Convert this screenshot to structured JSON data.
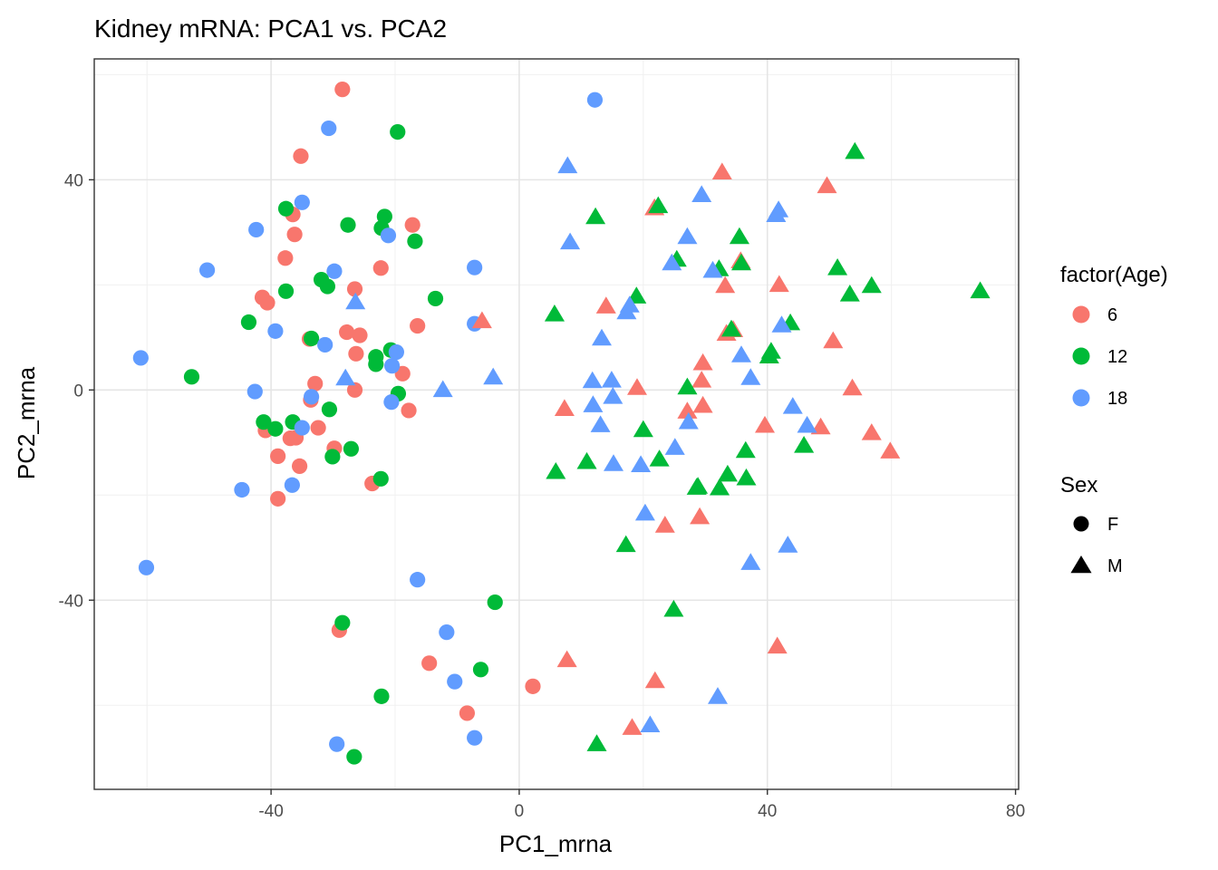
{
  "chart_data": {
    "type": "scatter",
    "title": "Kidney mRNA: PCA1 vs. PCA2",
    "xlabel": "PC1_mrna",
    "ylabel": "PC2_mrna",
    "xlim": [
      -68.5,
      80.5
    ],
    "ylim": [
      -76,
      63
    ],
    "x_ticks": [
      -40,
      0,
      40,
      80
    ],
    "x_tick_labels": [
      "-40",
      "0",
      "40",
      "80"
    ],
    "y_ticks": [
      -40,
      0,
      40
    ],
    "y_tick_labels": [
      "-40",
      "0",
      "40"
    ],
    "x_minor": [
      -60,
      -20,
      20,
      60
    ],
    "y_minor": [
      -60,
      -20,
      20,
      60
    ],
    "grid": true,
    "legend_position": "right",
    "color_legend": {
      "title": "factor(Age)",
      "entries": [
        {
          "label": "6",
          "color": "#F8766D"
        },
        {
          "label": "12",
          "color": "#00BA38"
        },
        {
          "label": "18",
          "color": "#619CFF"
        }
      ]
    },
    "shape_legend": {
      "title": "Sex",
      "entries": [
        {
          "label": "F",
          "shape": "circle"
        },
        {
          "label": "M",
          "shape": "triangle"
        }
      ]
    },
    "points": [
      {
        "x": -28.5,
        "y": 57.2,
        "age": "6",
        "sex": "F"
      },
      {
        "x": -35.2,
        "y": 44.5,
        "age": "6",
        "sex": "F"
      },
      {
        "x": -36.5,
        "y": 33.4,
        "age": "6",
        "sex": "F"
      },
      {
        "x": -36.2,
        "y": 29.6,
        "age": "6",
        "sex": "F"
      },
      {
        "x": -37.7,
        "y": 25.1,
        "age": "6",
        "sex": "F"
      },
      {
        "x": -41.4,
        "y": 17.6,
        "age": "6",
        "sex": "F"
      },
      {
        "x": -40.6,
        "y": 16.6,
        "age": "6",
        "sex": "F"
      },
      {
        "x": -22.3,
        "y": 23.2,
        "age": "6",
        "sex": "F"
      },
      {
        "x": -17.2,
        "y": 31.4,
        "age": "6",
        "sex": "F"
      },
      {
        "x": -26.5,
        "y": 19.2,
        "age": "6",
        "sex": "F"
      },
      {
        "x": -16.4,
        "y": 12.2,
        "age": "6",
        "sex": "F"
      },
      {
        "x": -27.8,
        "y": 11.0,
        "age": "6",
        "sex": "F"
      },
      {
        "x": -25.7,
        "y": 10.4,
        "age": "6",
        "sex": "F"
      },
      {
        "x": -33.8,
        "y": 9.7,
        "age": "6",
        "sex": "F"
      },
      {
        "x": -26.3,
        "y": 6.9,
        "age": "6",
        "sex": "F"
      },
      {
        "x": -18.8,
        "y": 3.1,
        "age": "6",
        "sex": "F"
      },
      {
        "x": -32.9,
        "y": 1.2,
        "age": "6",
        "sex": "F"
      },
      {
        "x": -26.5,
        "y": 0.0,
        "age": "6",
        "sex": "F"
      },
      {
        "x": -33.6,
        "y": -1.9,
        "age": "6",
        "sex": "F"
      },
      {
        "x": -17.8,
        "y": -3.9,
        "age": "6",
        "sex": "F"
      },
      {
        "x": -32.4,
        "y": -7.2,
        "age": "6",
        "sex": "F"
      },
      {
        "x": -40.9,
        "y": -7.7,
        "age": "6",
        "sex": "F"
      },
      {
        "x": -36.9,
        "y": -9.2,
        "age": "6",
        "sex": "F"
      },
      {
        "x": -36.0,
        "y": -9.1,
        "age": "6",
        "sex": "F"
      },
      {
        "x": -29.8,
        "y": -11.1,
        "age": "6",
        "sex": "F"
      },
      {
        "x": -38.9,
        "y": -12.6,
        "age": "6",
        "sex": "F"
      },
      {
        "x": -35.4,
        "y": -14.5,
        "age": "6",
        "sex": "F"
      },
      {
        "x": -23.7,
        "y": -17.8,
        "age": "6",
        "sex": "F"
      },
      {
        "x": -38.9,
        "y": -20.7,
        "age": "6",
        "sex": "F"
      },
      {
        "x": -29.0,
        "y": -45.7,
        "age": "6",
        "sex": "F"
      },
      {
        "x": -14.5,
        "y": -52.0,
        "age": "6",
        "sex": "F"
      },
      {
        "x": -8.4,
        "y": -61.5,
        "age": "6",
        "sex": "F"
      },
      {
        "x": 2.2,
        "y": -56.4,
        "age": "6",
        "sex": "F"
      },
      {
        "x": -19.6,
        "y": 49.1,
        "age": "12",
        "sex": "F"
      },
      {
        "x": -37.6,
        "y": 34.5,
        "age": "12",
        "sex": "F"
      },
      {
        "x": -27.6,
        "y": 31.4,
        "age": "12",
        "sex": "F"
      },
      {
        "x": -21.7,
        "y": 33.0,
        "age": "12",
        "sex": "F"
      },
      {
        "x": -22.2,
        "y": 30.8,
        "age": "12",
        "sex": "F"
      },
      {
        "x": -16.8,
        "y": 28.3,
        "age": "12",
        "sex": "F"
      },
      {
        "x": -31.9,
        "y": 21.0,
        "age": "12",
        "sex": "F"
      },
      {
        "x": -30.9,
        "y": 19.7,
        "age": "12",
        "sex": "F"
      },
      {
        "x": -37.6,
        "y": 18.8,
        "age": "12",
        "sex": "F"
      },
      {
        "x": -13.5,
        "y": 17.4,
        "age": "12",
        "sex": "F"
      },
      {
        "x": -43.6,
        "y": 12.9,
        "age": "12",
        "sex": "F"
      },
      {
        "x": -33.5,
        "y": 9.8,
        "age": "12",
        "sex": "F"
      },
      {
        "x": -20.7,
        "y": 7.6,
        "age": "12",
        "sex": "F"
      },
      {
        "x": -23.1,
        "y": 6.3,
        "age": "12",
        "sex": "F"
      },
      {
        "x": -23.1,
        "y": 4.9,
        "age": "12",
        "sex": "F"
      },
      {
        "x": -52.8,
        "y": 2.5,
        "age": "12",
        "sex": "F"
      },
      {
        "x": -19.5,
        "y": -0.7,
        "age": "12",
        "sex": "F"
      },
      {
        "x": -30.6,
        "y": -3.7,
        "age": "12",
        "sex": "F"
      },
      {
        "x": -41.2,
        "y": -6.1,
        "age": "12",
        "sex": "F"
      },
      {
        "x": -36.5,
        "y": -6.1,
        "age": "12",
        "sex": "F"
      },
      {
        "x": -39.3,
        "y": -7.4,
        "age": "12",
        "sex": "F"
      },
      {
        "x": -27.1,
        "y": -11.2,
        "age": "12",
        "sex": "F"
      },
      {
        "x": -30.1,
        "y": -12.7,
        "age": "12",
        "sex": "F"
      },
      {
        "x": -22.3,
        "y": -16.9,
        "age": "12",
        "sex": "F"
      },
      {
        "x": -28.5,
        "y": -44.3,
        "age": "12",
        "sex": "F"
      },
      {
        "x": -3.9,
        "y": -40.4,
        "age": "12",
        "sex": "F"
      },
      {
        "x": -6.2,
        "y": -53.2,
        "age": "12",
        "sex": "F"
      },
      {
        "x": -22.2,
        "y": -58.3,
        "age": "12",
        "sex": "F"
      },
      {
        "x": -26.6,
        "y": -69.8,
        "age": "12",
        "sex": "F"
      },
      {
        "x": 12.2,
        "y": 55.2,
        "age": "18",
        "sex": "F"
      },
      {
        "x": -30.7,
        "y": 49.8,
        "age": "18",
        "sex": "F"
      },
      {
        "x": -35.0,
        "y": 35.7,
        "age": "18",
        "sex": "F"
      },
      {
        "x": -42.4,
        "y": 30.5,
        "age": "18",
        "sex": "F"
      },
      {
        "x": -21.1,
        "y": 29.4,
        "age": "18",
        "sex": "F"
      },
      {
        "x": -50.3,
        "y": 22.8,
        "age": "18",
        "sex": "F"
      },
      {
        "x": -29.8,
        "y": 22.6,
        "age": "18",
        "sex": "F"
      },
      {
        "x": -7.2,
        "y": 23.3,
        "age": "18",
        "sex": "F"
      },
      {
        "x": -39.3,
        "y": 11.2,
        "age": "18",
        "sex": "F"
      },
      {
        "x": -31.3,
        "y": 8.6,
        "age": "18",
        "sex": "F"
      },
      {
        "x": -7.2,
        "y": 12.6,
        "age": "18",
        "sex": "F"
      },
      {
        "x": -19.8,
        "y": 7.2,
        "age": "18",
        "sex": "F"
      },
      {
        "x": -20.5,
        "y": 4.6,
        "age": "18",
        "sex": "F"
      },
      {
        "x": -61.0,
        "y": 6.1,
        "age": "18",
        "sex": "F"
      },
      {
        "x": -42.6,
        "y": -0.3,
        "age": "18",
        "sex": "F"
      },
      {
        "x": -33.5,
        "y": -1.3,
        "age": "18",
        "sex": "F"
      },
      {
        "x": -20.6,
        "y": -2.3,
        "age": "18",
        "sex": "F"
      },
      {
        "x": -35.0,
        "y": -7.2,
        "age": "18",
        "sex": "F"
      },
      {
        "x": -44.7,
        "y": -19.0,
        "age": "18",
        "sex": "F"
      },
      {
        "x": -36.6,
        "y": -18.1,
        "age": "18",
        "sex": "F"
      },
      {
        "x": -60.1,
        "y": -33.8,
        "age": "18",
        "sex": "F"
      },
      {
        "x": -16.4,
        "y": -36.1,
        "age": "18",
        "sex": "F"
      },
      {
        "x": -11.7,
        "y": -46.1,
        "age": "18",
        "sex": "F"
      },
      {
        "x": -10.4,
        "y": -55.5,
        "age": "18",
        "sex": "F"
      },
      {
        "x": -29.4,
        "y": -67.4,
        "age": "18",
        "sex": "F"
      },
      {
        "x": -7.2,
        "y": -66.2,
        "age": "18",
        "sex": "F"
      },
      {
        "x": -6.0,
        "y": 13.1,
        "age": "6",
        "sex": "M"
      },
      {
        "x": 32.7,
        "y": 41.4,
        "age": "6",
        "sex": "M"
      },
      {
        "x": 49.6,
        "y": 38.8,
        "age": "6",
        "sex": "M"
      },
      {
        "x": 21.8,
        "y": 34.6,
        "age": "6",
        "sex": "M"
      },
      {
        "x": 35.7,
        "y": 24.5,
        "age": "6",
        "sex": "M"
      },
      {
        "x": 33.2,
        "y": 19.8,
        "age": "6",
        "sex": "M"
      },
      {
        "x": 41.9,
        "y": 20.0,
        "age": "6",
        "sex": "M"
      },
      {
        "x": 14.0,
        "y": 15.9,
        "age": "6",
        "sex": "M"
      },
      {
        "x": 33.4,
        "y": 10.7,
        "age": "6",
        "sex": "M"
      },
      {
        "x": 34.5,
        "y": 11.4,
        "age": "6",
        "sex": "M"
      },
      {
        "x": 50.6,
        "y": 9.3,
        "age": "6",
        "sex": "M"
      },
      {
        "x": 29.6,
        "y": 5.1,
        "age": "6",
        "sex": "M"
      },
      {
        "x": 29.4,
        "y": 1.8,
        "age": "6",
        "sex": "M"
      },
      {
        "x": 19.0,
        "y": 0.4,
        "age": "6",
        "sex": "M"
      },
      {
        "x": 53.7,
        "y": 0.3,
        "age": "6",
        "sex": "M"
      },
      {
        "x": 7.3,
        "y": -3.6,
        "age": "6",
        "sex": "M"
      },
      {
        "x": 27.1,
        "y": -4.1,
        "age": "6",
        "sex": "M"
      },
      {
        "x": 29.6,
        "y": -3.0,
        "age": "6",
        "sex": "M"
      },
      {
        "x": 39.6,
        "y": -6.8,
        "age": "6",
        "sex": "M"
      },
      {
        "x": 48.6,
        "y": -7.1,
        "age": "6",
        "sex": "M"
      },
      {
        "x": 56.8,
        "y": -8.2,
        "age": "6",
        "sex": "M"
      },
      {
        "x": 59.8,
        "y": -11.7,
        "age": "6",
        "sex": "M"
      },
      {
        "x": 29.1,
        "y": -24.2,
        "age": "6",
        "sex": "M"
      },
      {
        "x": 23.5,
        "y": -25.8,
        "age": "6",
        "sex": "M"
      },
      {
        "x": 7.7,
        "y": -51.4,
        "age": "6",
        "sex": "M"
      },
      {
        "x": 41.6,
        "y": -48.8,
        "age": "6",
        "sex": "M"
      },
      {
        "x": 21.9,
        "y": -55.4,
        "age": "6",
        "sex": "M"
      },
      {
        "x": 18.2,
        "y": -64.3,
        "age": "6",
        "sex": "M"
      },
      {
        "x": 54.1,
        "y": 45.3,
        "age": "12",
        "sex": "M"
      },
      {
        "x": 12.3,
        "y": 32.9,
        "age": "12",
        "sex": "M"
      },
      {
        "x": 22.4,
        "y": 35.0,
        "age": "12",
        "sex": "M"
      },
      {
        "x": 35.5,
        "y": 29.1,
        "age": "12",
        "sex": "M"
      },
      {
        "x": 25.4,
        "y": 24.8,
        "age": "12",
        "sex": "M"
      },
      {
        "x": 32.2,
        "y": 23.0,
        "age": "12",
        "sex": "M"
      },
      {
        "x": 35.8,
        "y": 24.1,
        "age": "12",
        "sex": "M"
      },
      {
        "x": 51.3,
        "y": 23.2,
        "age": "12",
        "sex": "M"
      },
      {
        "x": 53.3,
        "y": 18.2,
        "age": "12",
        "sex": "M"
      },
      {
        "x": 56.8,
        "y": 19.8,
        "age": "12",
        "sex": "M"
      },
      {
        "x": 74.3,
        "y": 18.8,
        "age": "12",
        "sex": "M"
      },
      {
        "x": 18.9,
        "y": 17.8,
        "age": "12",
        "sex": "M"
      },
      {
        "x": 5.7,
        "y": 14.4,
        "age": "12",
        "sex": "M"
      },
      {
        "x": 43.7,
        "y": 12.7,
        "age": "12",
        "sex": "M"
      },
      {
        "x": 34.2,
        "y": 11.5,
        "age": "12",
        "sex": "M"
      },
      {
        "x": 40.6,
        "y": 7.3,
        "age": "12",
        "sex": "M"
      },
      {
        "x": 40.3,
        "y": 6.4,
        "age": "12",
        "sex": "M"
      },
      {
        "x": 27.1,
        "y": 0.5,
        "age": "12",
        "sex": "M"
      },
      {
        "x": 20.0,
        "y": -7.6,
        "age": "12",
        "sex": "M"
      },
      {
        "x": 36.5,
        "y": -11.6,
        "age": "12",
        "sex": "M"
      },
      {
        "x": 45.9,
        "y": -10.6,
        "age": "12",
        "sex": "M"
      },
      {
        "x": 10.9,
        "y": -13.7,
        "age": "12",
        "sex": "M"
      },
      {
        "x": 22.6,
        "y": -13.2,
        "age": "12",
        "sex": "M"
      },
      {
        "x": 5.9,
        "y": -15.6,
        "age": "12",
        "sex": "M"
      },
      {
        "x": 33.6,
        "y": -16.1,
        "age": "12",
        "sex": "M"
      },
      {
        "x": 36.6,
        "y": -16.8,
        "age": "12",
        "sex": "M"
      },
      {
        "x": 28.8,
        "y": -18.4,
        "age": "12",
        "sex": "M"
      },
      {
        "x": 32.3,
        "y": -18.7,
        "age": "12",
        "sex": "M"
      },
      {
        "x": 28.6,
        "y": -18.6,
        "age": "12",
        "sex": "M"
      },
      {
        "x": 17.2,
        "y": -29.5,
        "age": "12",
        "sex": "M"
      },
      {
        "x": 24.9,
        "y": -41.8,
        "age": "12",
        "sex": "M"
      },
      {
        "x": 12.5,
        "y": -67.4,
        "age": "12",
        "sex": "M"
      },
      {
        "x": 7.8,
        "y": 42.6,
        "age": "18",
        "sex": "M"
      },
      {
        "x": 29.4,
        "y": 37.1,
        "age": "18",
        "sex": "M"
      },
      {
        "x": 41.8,
        "y": 34.2,
        "age": "18",
        "sex": "M"
      },
      {
        "x": 41.4,
        "y": 33.3,
        "age": "18",
        "sex": "M"
      },
      {
        "x": 27.1,
        "y": 29.1,
        "age": "18",
        "sex": "M"
      },
      {
        "x": 8.2,
        "y": 28.1,
        "age": "18",
        "sex": "M"
      },
      {
        "x": 24.6,
        "y": 24.1,
        "age": "18",
        "sex": "M"
      },
      {
        "x": 31.2,
        "y": 22.7,
        "age": "18",
        "sex": "M"
      },
      {
        "x": 17.8,
        "y": 16.1,
        "age": "18",
        "sex": "M"
      },
      {
        "x": 17.3,
        "y": 14.8,
        "age": "18",
        "sex": "M"
      },
      {
        "x": -26.4,
        "y": 16.7,
        "age": "18",
        "sex": "M"
      },
      {
        "x": 42.3,
        "y": 12.3,
        "age": "18",
        "sex": "M"
      },
      {
        "x": 13.3,
        "y": 9.8,
        "age": "18",
        "sex": "M"
      },
      {
        "x": 35.8,
        "y": 6.6,
        "age": "18",
        "sex": "M"
      },
      {
        "x": 11.8,
        "y": 1.7,
        "age": "18",
        "sex": "M"
      },
      {
        "x": 14.9,
        "y": 1.8,
        "age": "18",
        "sex": "M"
      },
      {
        "x": 37.3,
        "y": 2.3,
        "age": "18",
        "sex": "M"
      },
      {
        "x": -4.2,
        "y": 2.4,
        "age": "18",
        "sex": "M"
      },
      {
        "x": -28.0,
        "y": 2.2,
        "age": "18",
        "sex": "M"
      },
      {
        "x": -12.3,
        "y": 0.0,
        "age": "18",
        "sex": "M"
      },
      {
        "x": 15.1,
        "y": -1.3,
        "age": "18",
        "sex": "M"
      },
      {
        "x": 11.9,
        "y": -2.9,
        "age": "18",
        "sex": "M"
      },
      {
        "x": 44.1,
        "y": -3.2,
        "age": "18",
        "sex": "M"
      },
      {
        "x": 13.1,
        "y": -6.7,
        "age": "18",
        "sex": "M"
      },
      {
        "x": 46.4,
        "y": -6.8,
        "age": "18",
        "sex": "M"
      },
      {
        "x": 27.3,
        "y": -6.1,
        "age": "18",
        "sex": "M"
      },
      {
        "x": 25.1,
        "y": -11.0,
        "age": "18",
        "sex": "M"
      },
      {
        "x": 15.2,
        "y": -14.1,
        "age": "18",
        "sex": "M"
      },
      {
        "x": 19.6,
        "y": -14.3,
        "age": "18",
        "sex": "M"
      },
      {
        "x": 20.3,
        "y": -23.5,
        "age": "18",
        "sex": "M"
      },
      {
        "x": 43.3,
        "y": -29.6,
        "age": "18",
        "sex": "M"
      },
      {
        "x": 37.3,
        "y": -32.9,
        "age": "18",
        "sex": "M"
      },
      {
        "x": 32.0,
        "y": -58.4,
        "age": "18",
        "sex": "M"
      },
      {
        "x": 21.1,
        "y": -63.8,
        "age": "18",
        "sex": "M"
      }
    ]
  }
}
